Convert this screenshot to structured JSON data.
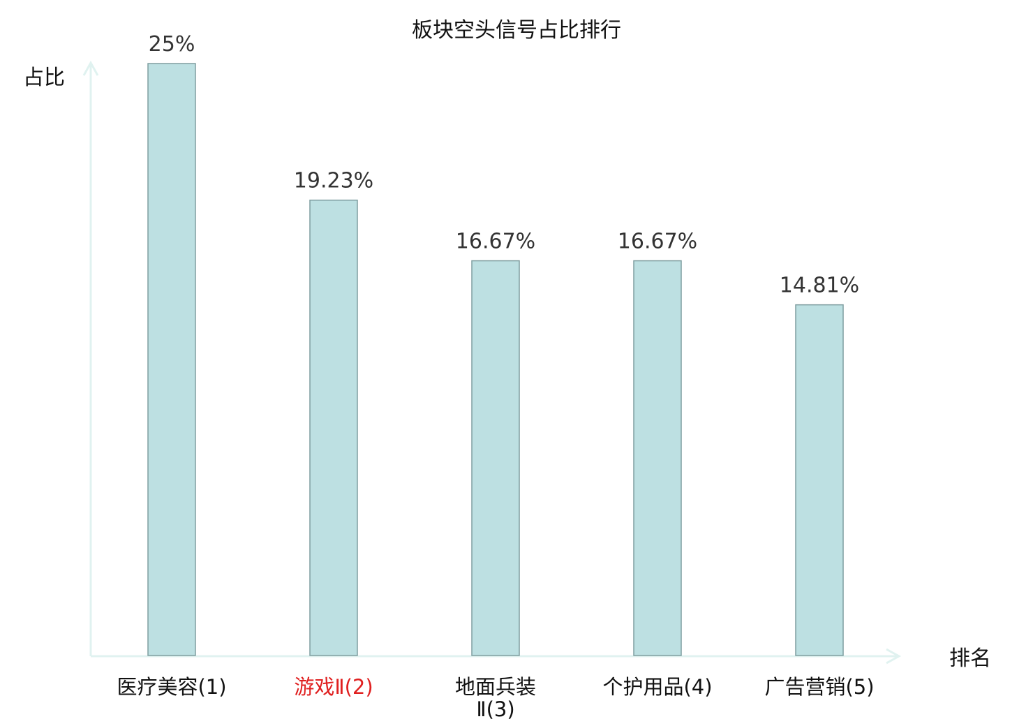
{
  "chart_data": {
    "type": "bar",
    "title": "板块空头信号占比排行",
    "ylabel": "占比",
    "xlabel": "排名",
    "categories": [
      {
        "name": "医疗美容",
        "rank": "(1)",
        "line2": "",
        "highlight": false
      },
      {
        "name": "游戏Ⅱ",
        "rank": "(2)",
        "line2": "",
        "highlight": true
      },
      {
        "name": "地面兵装",
        "rank": "",
        "line2": "Ⅱ(3)",
        "highlight": false
      },
      {
        "name": "个护用品",
        "rank": "(4)",
        "line2": "",
        "highlight": false
      },
      {
        "name": "广告营销",
        "rank": "(5)",
        "line2": "",
        "highlight": false
      }
    ],
    "values": [
      25,
      19.23,
      16.67,
      16.67,
      14.81
    ],
    "value_labels": [
      "25%",
      "19.23%",
      "16.67%",
      "16.67%",
      "14.81%"
    ],
    "ylim": [
      0,
      25
    ],
    "grid": false,
    "legend": "none"
  },
  "colors": {
    "bar_fill": "#bde0e2",
    "bar_stroke": "#7f9ea0",
    "axis": "#e0f2f0",
    "highlight_text": "#e02020",
    "text": "#111111",
    "value_text": "#333333"
  }
}
